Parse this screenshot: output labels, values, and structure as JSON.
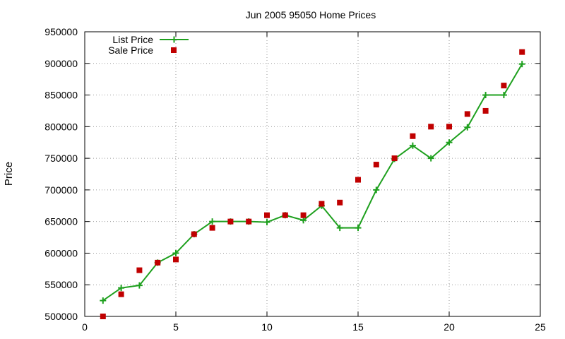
{
  "chart_data": {
    "type": "line",
    "title": "Jun 2005 95050 Home Prices",
    "xlabel": "",
    "ylabel": "Price",
    "xlim": [
      0,
      25
    ],
    "ylim": [
      500000,
      950000
    ],
    "x_ticks": [
      0,
      5,
      10,
      15,
      20,
      25
    ],
    "y_ticks": [
      500000,
      550000,
      600000,
      650000,
      700000,
      750000,
      800000,
      850000,
      900000,
      950000
    ],
    "grid": true,
    "legend_position": "top-left",
    "series": [
      {
        "name": "List Price",
        "style": "line-with-plus-markers",
        "color": "#1ea01e",
        "points": [
          [
            1,
            525000
          ],
          [
            2,
            545000
          ],
          [
            3,
            549000
          ],
          [
            4,
            585000
          ],
          [
            5,
            600000
          ],
          [
            6,
            630000
          ],
          [
            7,
            650000
          ],
          [
            8,
            650000
          ],
          [
            9,
            650000
          ],
          [
            10,
            649000
          ],
          [
            11,
            660000
          ],
          [
            12,
            652000
          ],
          [
            13,
            675000
          ],
          [
            14,
            640000
          ],
          [
            15,
            640000
          ],
          [
            16,
            700000
          ],
          [
            17,
            749000
          ],
          [
            18,
            770000
          ],
          [
            19,
            750000
          ],
          [
            20,
            775000
          ],
          [
            21,
            799000
          ],
          [
            22,
            850000
          ],
          [
            23,
            850000
          ],
          [
            24,
            899000
          ]
        ]
      },
      {
        "name": "Sale Price",
        "style": "square-markers",
        "color": "#c00000",
        "points": [
          [
            1,
            500000
          ],
          [
            2,
            535000
          ],
          [
            3,
            573000
          ],
          [
            4,
            585000
          ],
          [
            5,
            590000
          ],
          [
            6,
            630000
          ],
          [
            7,
            640000
          ],
          [
            8,
            650000
          ],
          [
            9,
            650000
          ],
          [
            10,
            660000
          ],
          [
            11,
            660000
          ],
          [
            12,
            660000
          ],
          [
            13,
            678000
          ],
          [
            14,
            680000
          ],
          [
            15,
            716000
          ],
          [
            16,
            740000
          ],
          [
            17,
            750000
          ],
          [
            18,
            785000
          ],
          [
            19,
            800000
          ],
          [
            20,
            800000
          ],
          [
            21,
            820000
          ],
          [
            22,
            825000
          ],
          [
            23,
            865000
          ],
          [
            24,
            918000
          ]
        ]
      }
    ]
  }
}
